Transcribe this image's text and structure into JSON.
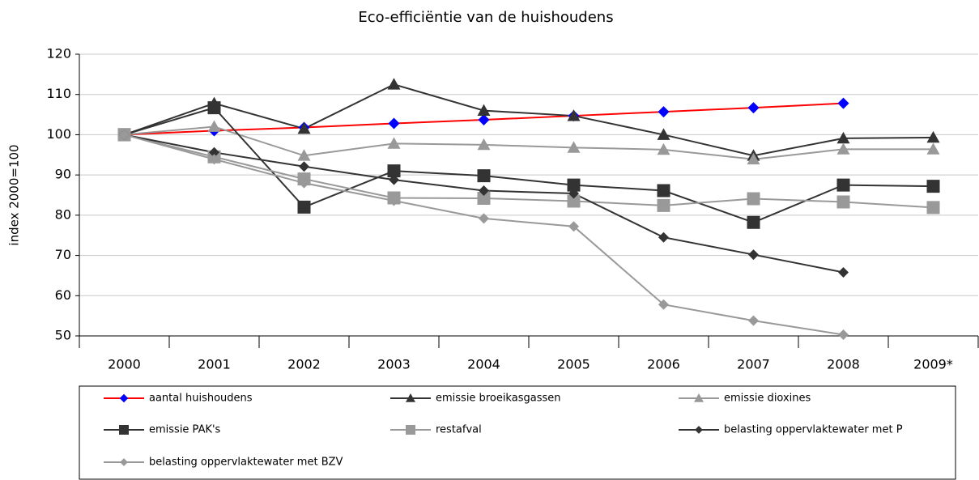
{
  "chart_data": {
    "type": "line",
    "title": "Eco-efficiëntie van de huishoudens",
    "y_label": "index 2000=100",
    "categories": [
      "2000",
      "2001",
      "2002",
      "2003",
      "2004",
      "2005",
      "2006",
      "2007",
      "2008",
      "2009*"
    ],
    "ylim": [
      50,
      120
    ],
    "yticks": [
      50,
      60,
      70,
      80,
      90,
      100,
      110,
      120
    ],
    "grid": true,
    "legend": "bottom",
    "series": [
      {
        "name": "aantal huishoudens",
        "color": "#ff0000",
        "marker_color": "#0000ff",
        "marker": "diamond",
        "values": [
          100,
          101,
          101.8,
          102.8,
          103.7,
          104.7,
          105.7,
          106.7,
          107.8,
          null
        ]
      },
      {
        "name": "emissie broeikasgassen",
        "color": "#333333",
        "marker_color": "#333333",
        "marker": "triangle",
        "values": [
          100,
          107.8,
          101.5,
          112.5,
          106,
          104.7,
          100,
          94.8,
          99.1,
          99.3
        ]
      },
      {
        "name": "emissie dioxines",
        "color": "#999999",
        "marker_color": "#999999",
        "marker": "triangle",
        "values": [
          100,
          102,
          94.8,
          97.8,
          97.5,
          96.8,
          96.3,
          93.9,
          96.4,
          96.4
        ]
      },
      {
        "name": "emissie PAK's",
        "color": "#333333",
        "marker_color": "#333333",
        "marker": "square",
        "values": [
          100,
          106.7,
          82,
          91,
          89.8,
          87.5,
          86.1,
          78.2,
          87.5,
          87.2
        ]
      },
      {
        "name": "restafval",
        "color": "#999999",
        "marker_color": "#999999",
        "marker": "square",
        "values": [
          100,
          94.5,
          89,
          84.3,
          84.2,
          83.5,
          82.4,
          84.1,
          83.3,
          81.9
        ]
      },
      {
        "name": "belasting oppervlaktewater met P",
        "color": "#333333",
        "marker_color": "#333333",
        "marker": "diamond",
        "values": [
          100,
          95.6,
          92.1,
          88.8,
          86.1,
          85.4,
          74.5,
          70.2,
          65.8,
          null
        ]
      },
      {
        "name": "belasting oppervlaktewater met BZV",
        "color": "#999999",
        "marker_color": "#999999",
        "marker": "diamond",
        "values": [
          100,
          93.9,
          88,
          83.6,
          79.2,
          77.2,
          57.8,
          53.8,
          50.3,
          null
        ]
      }
    ]
  }
}
